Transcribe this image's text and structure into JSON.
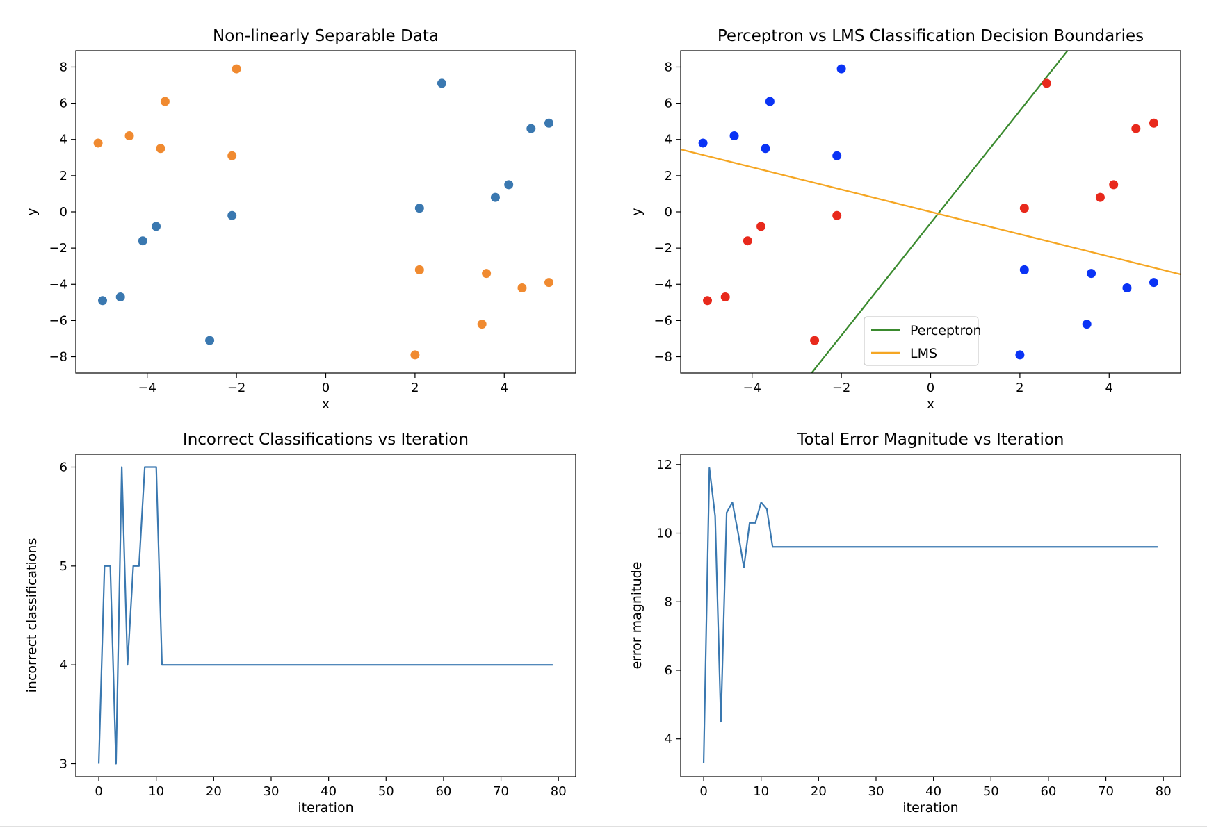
{
  "chart_data": [
    {
      "type": "scatter",
      "title": "Non-linearly Separable Data",
      "xlabel": "x",
      "ylabel": "y",
      "xlim": [
        -5.6,
        5.6
      ],
      "ylim": [
        -8.9,
        8.9
      ],
      "xticks": [
        -4,
        -2,
        0,
        2,
        4
      ],
      "yticks": [
        -8,
        -6,
        -4,
        -2,
        0,
        2,
        4,
        6,
        8
      ],
      "series": [
        {
          "color": "#3a78b0",
          "points": [
            [
              2.6,
              7.1
            ],
            [
              4.6,
              4.6
            ],
            [
              5.0,
              4.9
            ],
            [
              4.1,
              1.5
            ],
            [
              3.8,
              0.8
            ],
            [
              2.1,
              0.2
            ],
            [
              -2.1,
              -0.2
            ],
            [
              -3.8,
              -0.8
            ],
            [
              -4.1,
              -1.6
            ],
            [
              -4.6,
              -4.7
            ],
            [
              -5.0,
              -4.9
            ],
            [
              -2.6,
              -7.1
            ]
          ]
        },
        {
          "color": "#f08a30",
          "points": [
            [
              -2.0,
              7.9
            ],
            [
              -3.6,
              6.1
            ],
            [
              -4.4,
              4.2
            ],
            [
              -5.1,
              3.8
            ],
            [
              -3.7,
              3.5
            ],
            [
              -2.1,
              3.1
            ],
            [
              2.1,
              -3.2
            ],
            [
              3.6,
              -3.4
            ],
            [
              4.4,
              -4.2
            ],
            [
              5.0,
              -3.9
            ],
            [
              3.5,
              -6.2
            ],
            [
              2.0,
              -7.9
            ]
          ]
        }
      ]
    },
    {
      "type": "scatter",
      "title": "Perceptron vs LMS Classification Decision Boundaries",
      "xlabel": "x",
      "ylabel": "y",
      "xlim": [
        -5.6,
        5.6
      ],
      "ylim": [
        -8.9,
        8.9
      ],
      "xticks": [
        -4,
        -2,
        0,
        2,
        4
      ],
      "yticks": [
        -8,
        -6,
        -4,
        -2,
        0,
        2,
        4,
        6,
        8
      ],
      "points_red": {
        "color": "#e8291c",
        "points": [
          [
            2.6,
            7.1
          ],
          [
            4.6,
            4.6
          ],
          [
            5.0,
            4.9
          ],
          [
            4.1,
            1.5
          ],
          [
            3.8,
            0.8
          ],
          [
            2.1,
            0.2
          ],
          [
            -2.1,
            -0.2
          ],
          [
            -3.8,
            -0.8
          ],
          [
            -4.1,
            -1.6
          ],
          [
            -4.6,
            -4.7
          ],
          [
            -5.0,
            -4.9
          ],
          [
            -2.6,
            -7.1
          ]
        ]
      },
      "points_blue": {
        "color": "#0a33f5",
        "points": [
          [
            -2.0,
            7.9
          ],
          [
            -3.6,
            6.1
          ],
          [
            -4.4,
            4.2
          ],
          [
            -5.1,
            3.8
          ],
          [
            -3.7,
            3.5
          ],
          [
            -2.1,
            3.1
          ],
          [
            2.1,
            -3.2
          ],
          [
            3.6,
            -3.4
          ],
          [
            4.4,
            -4.2
          ],
          [
            5.0,
            -3.9
          ],
          [
            3.5,
            -6.2
          ],
          [
            2.0,
            -7.9
          ]
        ]
      },
      "lines": [
        {
          "name": "Perceptron",
          "color": "#3a8a2e",
          "points": [
            [
              -2.7,
              -9.0
            ],
            [
              3.1,
              9.0
            ]
          ]
        },
        {
          "name": "LMS",
          "color": "#f5a623",
          "points": [
            [
              -5.6,
              3.45
            ],
            [
              5.6,
              -3.45
            ]
          ]
        }
      ],
      "legend": [
        "Perceptron",
        "LMS"
      ],
      "legend_position": "lower-center"
    },
    {
      "type": "line",
      "title": "Incorrect Classifications vs Iteration",
      "xlabel": "iteration",
      "ylabel": "incorrect classifications",
      "xlim": [
        -4,
        83
      ],
      "ylim": [
        2.87,
        6.13
      ],
      "xticks": [
        0,
        10,
        20,
        30,
        40,
        50,
        60,
        70,
        80
      ],
      "yticks": [
        3,
        4,
        5,
        6
      ],
      "series": [
        {
          "color": "#3a78b0",
          "x": [
            0,
            1,
            2,
            3,
            4,
            5,
            6,
            7,
            8,
            9,
            10,
            11,
            79
          ],
          "y": [
            3,
            5,
            5,
            3,
            6,
            4,
            5,
            5,
            6,
            6,
            6,
            4,
            4
          ]
        }
      ]
    },
    {
      "type": "line",
      "title": "Total Error Magnitude vs Iteration",
      "xlabel": "iteration",
      "ylabel": "error magnitude",
      "xlim": [
        -4,
        83
      ],
      "ylim": [
        2.9,
        12.3
      ],
      "xticks": [
        0,
        10,
        20,
        30,
        40,
        50,
        60,
        70,
        80
      ],
      "yticks": [
        4,
        6,
        8,
        10,
        12
      ],
      "series": [
        {
          "color": "#3a78b0",
          "x": [
            0,
            1,
            2,
            3,
            4,
            5,
            6,
            7,
            8,
            9,
            10,
            11,
            12,
            79
          ],
          "y": [
            3.3,
            11.9,
            10.5,
            4.5,
            10.6,
            10.9,
            10.0,
            9.0,
            10.3,
            10.3,
            10.9,
            10.7,
            9.6,
            9.6
          ]
        }
      ]
    }
  ]
}
